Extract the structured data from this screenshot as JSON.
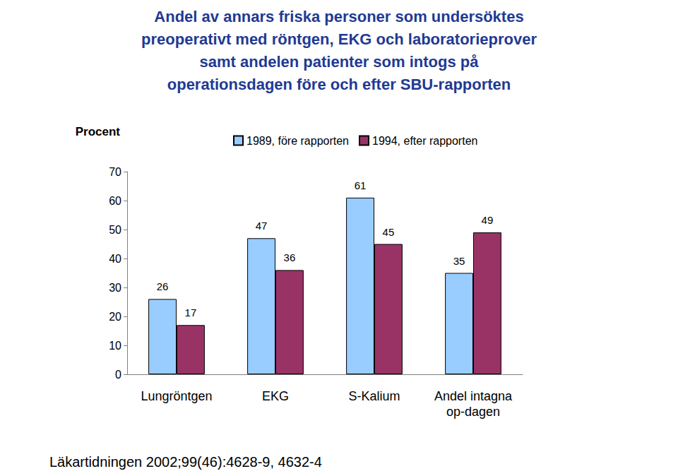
{
  "chart_data": {
    "type": "bar",
    "title": "Andel av annars friska personer som undersöktes\npreoperativt med röntgen, EKG och laboratorieprover\nsamt andelen patienter som intogs på\noperationsdagen före och efter SBU-rapporten",
    "y_label": "Procent",
    "categories": [
      "Lungröntgen",
      "EKG",
      "S-Kalium",
      "Andel intagna\nop-dagen"
    ],
    "series": [
      {
        "name": "1989, före rapporten",
        "color": "#99ccff",
        "values": [
          26,
          47,
          61,
          35
        ]
      },
      {
        "name": "1994, efter rapporten",
        "color": "#993366",
        "values": [
          17,
          36,
          45,
          49
        ]
      }
    ],
    "ylim": [
      0,
      70
    ],
    "yticks": [
      0,
      10,
      20,
      30,
      40,
      50,
      60,
      70
    ],
    "grid": false,
    "legend": "top",
    "data_labels": true,
    "annotations": [
      "Läkartidningen 2002;99(46):4628-9, 4632-4"
    ]
  }
}
